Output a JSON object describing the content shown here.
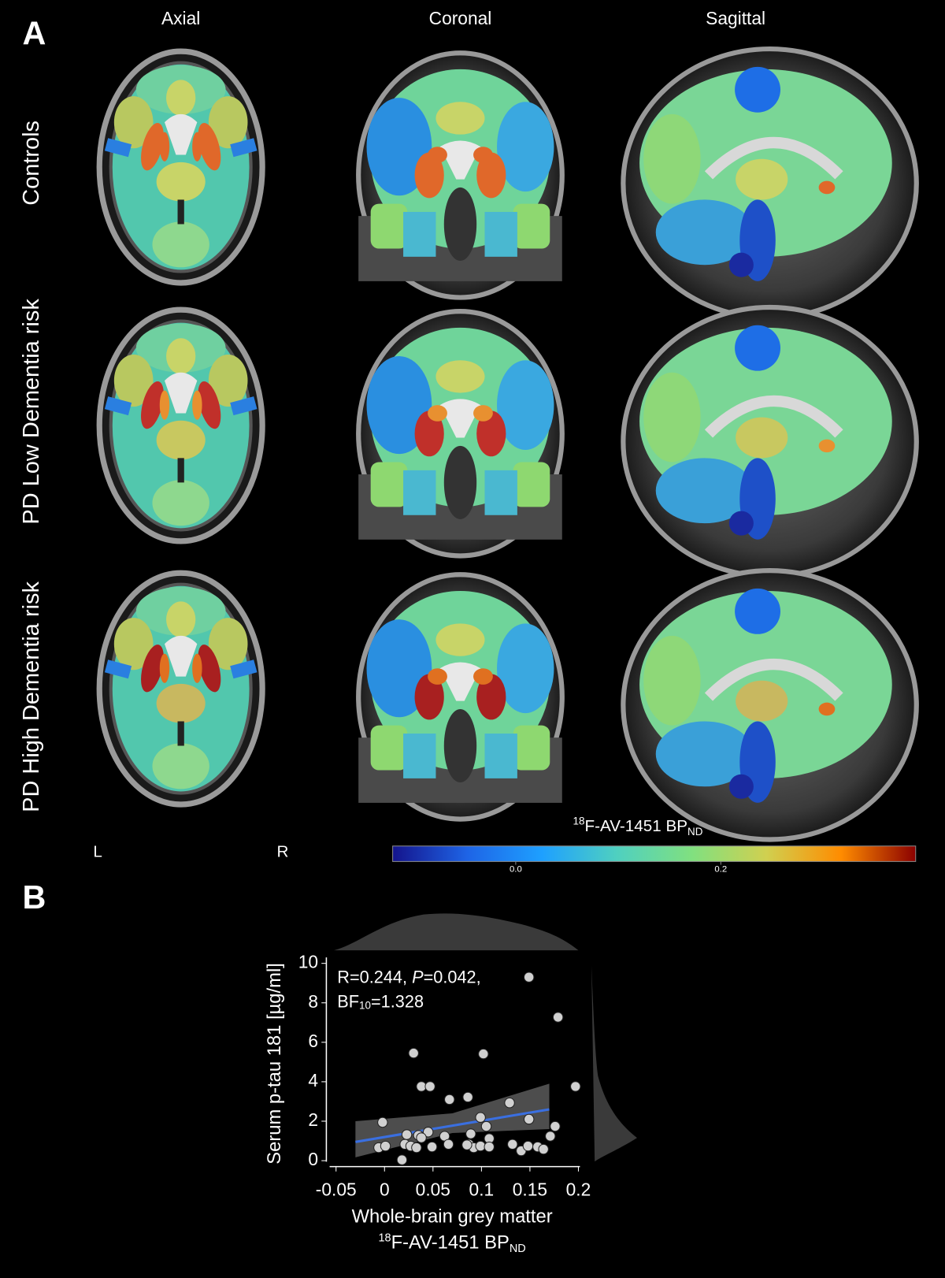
{
  "panel_a": {
    "label": "A",
    "columns": [
      "Axial",
      "Coronal",
      "Sagittal"
    ],
    "rows": [
      "Controls",
      "PD Low Dementia risk",
      "PD High Dementia risk"
    ],
    "orientation": {
      "left": "L",
      "right": "R"
    }
  },
  "colorbar": {
    "title_sup": "18",
    "title": "F-AV-1451 BP",
    "title_sub": "ND",
    "range": [
      -0.12,
      0.39
    ],
    "ticks": [
      {
        "value": 0,
        "label": "0.0"
      },
      {
        "value": 0.2,
        "label": "0.2"
      }
    ],
    "colormap": [
      "#14148c",
      "#1e64e6",
      "#1ea0ff",
      "#4fd0c0",
      "#80e080",
      "#d0d050",
      "#ff8c00",
      "#8b0000"
    ]
  },
  "panel_b_label": "B",
  "chart_data": {
    "type": "scatter",
    "x": [
      0.149,
      0.179,
      0.197,
      0.03,
      0.102,
      0.038,
      0.047,
      0.086,
      0.067,
      0.129,
      -0.002,
      0.099,
      0.149,
      0.105,
      0.176,
      0.023,
      0.035,
      0.045,
      0.062,
      0.089,
      0.108,
      0.171,
      -0.006,
      0.001,
      0.021,
      0.027,
      0.033,
      0.049,
      0.066,
      0.087,
      0.092,
      0.099,
      0.108,
      0.132,
      0.141,
      0.148,
      0.158,
      0.164,
      0.018,
      0.038,
      0.085
    ],
    "y": [
      9.3,
      7.27,
      3.76,
      5.45,
      5.41,
      3.76,
      3.76,
      3.22,
      3.1,
      2.93,
      1.94,
      2.19,
      2.1,
      1.74,
      1.74,
      1.32,
      1.28,
      1.45,
      1.24,
      1.36,
      1.12,
      1.24,
      0.66,
      0.74,
      0.83,
      0.74,
      0.66,
      0.7,
      0.83,
      0.83,
      0.66,
      0.74,
      0.7,
      0.83,
      0.5,
      0.74,
      0.7,
      0.58,
      0.04,
      1.16,
      0.8
    ],
    "color": "#d0d0d0",
    "fit": {
      "x": [
        -0.03,
        0.17
      ],
      "y": [
        0.95,
        2.6
      ],
      "color": "#3a6fe0"
    },
    "ci": {
      "x": [
        -0.03,
        0.07,
        0.17
      ],
      "lower": [
        0.17,
        1.4,
        1.6
      ],
      "upper": [
        2.0,
        2.4,
        3.9
      ]
    },
    "stats": {
      "r": "R=0.244, ",
      "p_symbol": "P",
      "p": "=0.042,",
      "bf": "BF",
      "bf_sub": "10",
      "bf_value": "=1.328"
    },
    "xlabel": "Whole-brain grey matter",
    "xlabel2_sup": "18",
    "xlabel2": "F-AV-1451 BP",
    "xlabel2_sub": "ND",
    "ylabel": "Serum p-tau 181 [µg/ml]",
    "xlim": [
      -0.06,
      0.21
    ],
    "ylim": [
      -0.3,
      10.3
    ],
    "xticks": [
      -0.05,
      0,
      0.05,
      0.1,
      0.15,
      0.2
    ],
    "yticks": [
      0,
      2,
      4,
      6,
      8,
      10
    ]
  }
}
